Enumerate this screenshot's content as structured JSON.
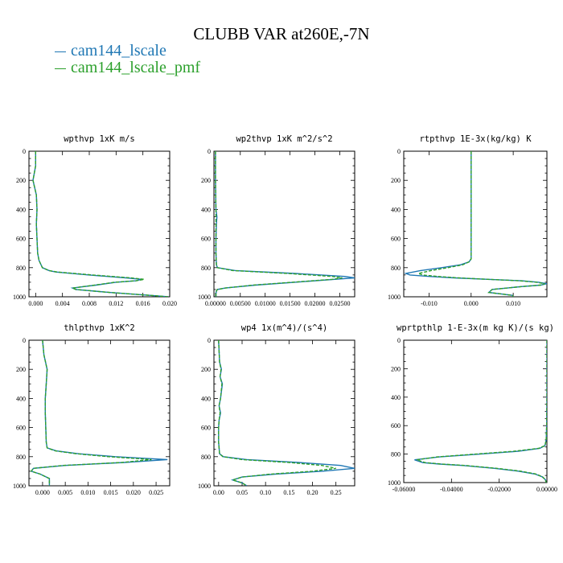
{
  "title": "CLUBB VAR at260E,-7N",
  "legend": [
    {
      "label": "cam144_lscale",
      "color": "#1f77b4",
      "dash": false
    },
    {
      "label": "cam144_lscale_pmf",
      "color": "#2ca02c",
      "dash": true
    }
  ],
  "chart_data": [
    {
      "type": "line",
      "title": "wpthvp  1xK m/s",
      "xlim": [
        -0.001,
        0.02
      ],
      "ylim": [
        1000,
        0
      ],
      "xticks": [
        0.0,
        0.004,
        0.008,
        0.012,
        0.016,
        0.02
      ],
      "xtick_labels": [
        "0.000",
        "0.004",
        "0.008",
        "0.012",
        "0.016",
        "0.020"
      ],
      "yticks": [
        0,
        200,
        400,
        600,
        800,
        1000
      ],
      "ytick_labels": [
        "0",
        "200",
        "400",
        "600",
        "800",
        "1000"
      ],
      "y": [
        0,
        100,
        200,
        300,
        400,
        500,
        600,
        700,
        750,
        800,
        820,
        830,
        850,
        870,
        880,
        890,
        900,
        920,
        940,
        950,
        970,
        990,
        1000
      ],
      "series": [
        {
          "name": "cam144_lscale",
          "color": "#1f77b4",
          "x": [
            0.0,
            0.0,
            -0.0004,
            0.0001,
            0.0002,
            0.0001,
            0.0002,
            0.0003,
            0.0005,
            0.001,
            0.002,
            0.003,
            0.008,
            0.0135,
            0.0158,
            0.015,
            0.012,
            0.009,
            0.0055,
            0.006,
            0.011,
            0.017,
            0.0198
          ]
        },
        {
          "name": "cam144_lscale_pmf",
          "color": "#2ca02c",
          "x": [
            0.0,
            0.0,
            -0.0004,
            0.0001,
            0.0002,
            0.0001,
            0.0002,
            0.0003,
            0.0005,
            0.001,
            0.002,
            0.0032,
            0.0085,
            0.0142,
            0.0162,
            0.015,
            0.0118,
            0.0088,
            0.0055,
            0.006,
            0.011,
            0.017,
            0.0198
          ]
        }
      ]
    },
    {
      "type": "line",
      "title": "wp2thvp  1xK m^2/s^2",
      "xlim": [
        -0.0003,
        0.028
      ],
      "ylim": [
        1000,
        0
      ],
      "xticks": [
        0.0,
        0.005,
        0.01,
        0.015,
        0.02,
        0.025
      ],
      "xtick_labels": [
        "0.00000",
        "0.00500",
        "0.01000",
        "0.01500",
        "0.02000",
        "0.02500"
      ],
      "yticks": [
        0,
        200,
        400,
        600,
        800,
        1000
      ],
      "ytick_labels": [
        "0",
        "200",
        "400",
        "600",
        "800",
        "1000"
      ],
      "y": [
        0,
        200,
        400,
        450,
        500,
        600,
        700,
        780,
        800,
        820,
        840,
        860,
        870,
        880,
        900,
        920,
        940,
        950,
        960,
        980,
        1000
      ],
      "series": [
        {
          "name": "cam144_lscale",
          "color": "#1f77b4",
          "x": [
            0.0,
            0.0,
            0.0001,
            0.0003,
            0.0002,
            0.0001,
            0.0001,
            0.0002,
            0.0004,
            0.004,
            0.016,
            0.026,
            0.028,
            0.024,
            0.016,
            0.008,
            0.002,
            0.0004,
            0.0002,
            0.0001,
            0.0001
          ]
        },
        {
          "name": "cam144_lscale_pmf",
          "color": "#2ca02c",
          "x": [
            0.0,
            0.0,
            0.0001,
            0.0001,
            0.0001,
            0.0001,
            0.0001,
            0.0002,
            0.0004,
            0.0035,
            0.0145,
            0.0235,
            0.0255,
            0.0235,
            0.0155,
            0.0075,
            0.002,
            0.0004,
            0.0002,
            0.0001,
            0.0001
          ]
        }
      ]
    },
    {
      "type": "line",
      "title": "rtpthvp  1E-3x(kg/kg) K",
      "xlim": [
        -0.016,
        0.018
      ],
      "ylim": [
        1000,
        0
      ],
      "xticks": [
        -0.01,
        0.0,
        0.01
      ],
      "xtick_labels": [
        "-0.010",
        "0.000",
        "0.010"
      ],
      "yticks": [
        0,
        200,
        400,
        600,
        800,
        1000
      ],
      "ytick_labels": [
        "0",
        "200",
        "400",
        "600",
        "800",
        "1000"
      ],
      "y": [
        0,
        200,
        400,
        600,
        700,
        740,
        760,
        780,
        800,
        820,
        840,
        850,
        860,
        870,
        880,
        890,
        900,
        910,
        920,
        930,
        950,
        970,
        990,
        1000
      ],
      "series": [
        {
          "name": "cam144_lscale",
          "color": "#1f77b4",
          "x": [
            0.0,
            0.0,
            0.0,
            0.0,
            0.0,
            0.0,
            -0.0005,
            -0.0025,
            -0.007,
            -0.012,
            -0.0155,
            -0.0145,
            -0.01,
            -0.004,
            0.004,
            0.012,
            0.016,
            0.018,
            0.0165,
            0.012,
            0.005,
            0.0042,
            0.0098,
            0.01
          ]
        },
        {
          "name": "cam144_lscale_pmf",
          "color": "#2ca02c",
          "x": [
            0.0,
            0.0,
            0.0,
            0.0,
            0.0,
            0.0,
            -0.0005,
            -0.002,
            -0.0055,
            -0.0095,
            -0.0125,
            -0.0115,
            -0.008,
            -0.003,
            0.004,
            0.0115,
            0.0155,
            0.0175,
            0.0165,
            0.012,
            0.005,
            0.0042,
            0.0098,
            0.01
          ]
        }
      ]
    },
    {
      "type": "line",
      "title": "thlpthvp  1xK^2",
      "xlim": [
        -0.003,
        0.028
      ],
      "ylim": [
        1000,
        0
      ],
      "xticks": [
        0.0,
        0.005,
        0.01,
        0.015,
        0.02,
        0.025
      ],
      "xtick_labels": [
        "0.000",
        "0.005",
        "0.010",
        "0.015",
        "0.020",
        "0.025"
      ],
      "yticks": [
        0,
        200,
        400,
        600,
        800,
        1000
      ],
      "ytick_labels": [
        "0",
        "200",
        "400",
        "600",
        "800",
        "1000"
      ],
      "y": [
        0,
        100,
        200,
        300,
        400,
        500,
        600,
        700,
        740,
        760,
        780,
        800,
        820,
        840,
        860,
        880,
        900,
        920,
        950,
        980,
        1000
      ],
      "series": [
        {
          "name": "cam144_lscale",
          "color": "#1f77b4",
          "x": [
            0.0,
            0.0003,
            0.001,
            0.0008,
            0.0006,
            0.0006,
            0.0007,
            0.0008,
            0.001,
            0.003,
            0.008,
            0.016,
            0.0275,
            0.018,
            0.005,
            -0.002,
            -0.0025,
            -0.0005,
            0.0015,
            0.0015,
            0.0015
          ]
        },
        {
          "name": "cam144_lscale_pmf",
          "color": "#2ca02c",
          "x": [
            0.0,
            0.0003,
            0.001,
            0.0008,
            0.0006,
            0.0006,
            0.0007,
            0.0008,
            0.001,
            0.0028,
            0.0075,
            0.0145,
            0.024,
            0.0175,
            0.0045,
            -0.002,
            -0.0025,
            -0.0005,
            0.0015,
            0.0015,
            0.0015
          ]
        }
      ]
    },
    {
      "type": "line",
      "title": "wp4  1x(m^4)/(s^4)",
      "xlim": [
        -0.01,
        0.29
      ],
      "ylim": [
        1000,
        0
      ],
      "xticks": [
        0.0,
        0.05,
        0.1,
        0.15,
        0.2,
        0.25
      ],
      "xtick_labels": [
        "0.00",
        "0.05",
        "0.10",
        "0.15",
        "0.20",
        "0.25"
      ],
      "yticks": [
        0,
        200,
        400,
        600,
        800,
        1000
      ],
      "ytick_labels": [
        "0",
        "200",
        "400",
        "600",
        "800",
        "1000"
      ],
      "y": [
        0,
        150,
        200,
        250,
        300,
        400,
        450,
        500,
        550,
        600,
        700,
        780,
        800,
        820,
        840,
        860,
        880,
        900,
        920,
        940,
        960,
        980,
        1000
      ],
      "series": [
        {
          "name": "cam144_lscale",
          "color": "#1f77b4",
          "x": [
            0.0,
            0.002,
            0.006,
            0.003,
            0.008,
            0.004,
            0.001,
            0.004,
            0.001,
            0.0,
            0.0,
            0.002,
            0.01,
            0.06,
            0.17,
            0.26,
            0.29,
            0.22,
            0.12,
            0.05,
            0.03,
            0.05,
            0.06
          ]
        },
        {
          "name": "cam144_lscale_pmf",
          "color": "#2ca02c",
          "x": [
            0.0,
            0.002,
            0.005,
            0.003,
            0.007,
            0.004,
            0.001,
            0.003,
            0.001,
            0.0,
            0.0,
            0.002,
            0.009,
            0.05,
            0.15,
            0.22,
            0.25,
            0.2,
            0.11,
            0.05,
            0.03,
            0.05,
            0.06
          ]
        }
      ]
    },
    {
      "type": "line",
      "title": "wprtpthlp  1-E-3x(m kg K)/(s kg)",
      "xlim": [
        -0.06,
        0.0
      ],
      "ylim": [
        1000,
        0
      ],
      "xticks": [
        -0.06,
        -0.04,
        -0.02,
        0.0
      ],
      "xtick_labels": [
        "-0.06000",
        "-0.04000",
        "-0.02000",
        "0.00000"
      ],
      "yticks": [
        0,
        200,
        400,
        600,
        800,
        1000
      ],
      "ytick_labels": [
        "0",
        "200",
        "400",
        "600",
        "800",
        "1000"
      ],
      "y": [
        0,
        200,
        400,
        600,
        700,
        740,
        760,
        780,
        800,
        820,
        840,
        860,
        870,
        880,
        900,
        920,
        940,
        960,
        980,
        1000
      ],
      "series": [
        {
          "name": "cam144_lscale",
          "color": "#1f77b4",
          "x": [
            0.0,
            0.0,
            0.0,
            -0.0001,
            -0.0003,
            -0.0008,
            -0.003,
            -0.012,
            -0.028,
            -0.045,
            -0.0555,
            -0.052,
            -0.045,
            -0.035,
            -0.022,
            -0.012,
            -0.005,
            -0.002,
            -0.0006,
            -0.0003
          ]
        },
        {
          "name": "cam144_lscale_pmf",
          "color": "#2ca02c",
          "x": [
            0.0,
            0.0,
            0.0,
            -0.0001,
            -0.0003,
            -0.0008,
            -0.0035,
            -0.014,
            -0.03,
            -0.046,
            -0.0545,
            -0.051,
            -0.044,
            -0.034,
            -0.021,
            -0.011,
            -0.0045,
            -0.0018,
            -0.0006,
            -0.0003
          ]
        }
      ]
    }
  ]
}
